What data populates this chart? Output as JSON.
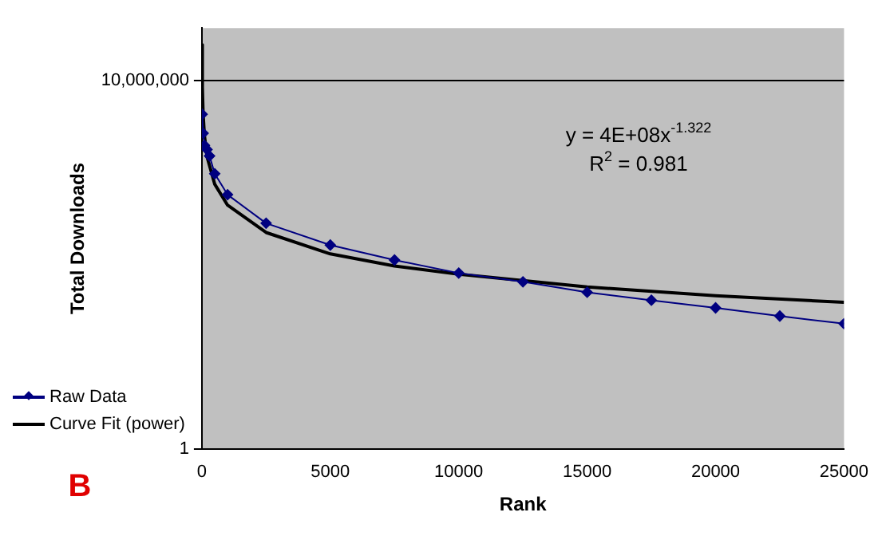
{
  "chart_data": {
    "type": "scatter",
    "xlabel": "Rank",
    "ylabel": "Total Downloads",
    "annotations": [
      "y = 4E+08x$^{-1.322}$",
      "R$^{2}$ = 0.981",
      "B"
    ],
    "series": [
      {
        "name": "Raw Data",
        "type": "line",
        "color": "#000080",
        "marker": "diamond",
        "x": [
          10,
          50,
          100,
          200,
          300,
          500,
          1000,
          2500,
          5000,
          7500,
          10000,
          12500,
          15000,
          17500,
          20000,
          22500,
          25000
        ],
        "values": [
          2300000,
          1000000,
          590000,
          490000,
          370000,
          170000,
          68000,
          19500,
          7500,
          3900,
          2200,
          1500,
          950,
          670,
          480,
          335,
          240
        ]
      },
      {
        "name": "Curve Fit (power)",
        "type": "line",
        "color": "#000000",
        "marker": "none",
        "x": [
          5,
          20,
          50,
          100,
          200,
          500,
          1000,
          2500,
          5000,
          7500,
          10000,
          15000,
          20000,
          25000
        ],
        "values": [
          48000000,
          7600000,
          2300000,
          910000,
          360000,
          108000,
          43000,
          13000,
          5100,
          3000,
          2100,
          1200,
          820,
          610
        ]
      }
    ],
    "xlim": [
      0,
      25000
    ],
    "xticks": [
      0,
      5000,
      10000,
      15000,
      20000,
      25000
    ],
    "ylim": [
      1,
      100000000
    ],
    "yticks": [
      1,
      {
        "value": 10000000,
        "label": "10,000,000"
      }
    ],
    "log": "y",
    "grid": "y",
    "legend": "left"
  }
}
